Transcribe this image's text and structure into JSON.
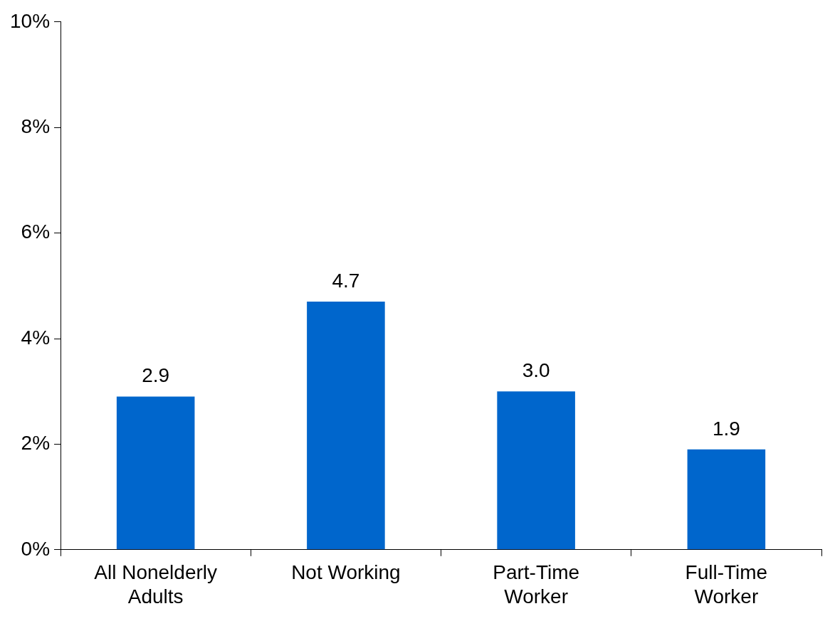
{
  "chart_data": {
    "type": "bar",
    "categories": [
      "All Nonelderly Adults",
      "Not Working",
      "Part-Time Worker",
      "Full-Time Worker"
    ],
    "values": [
      2.9,
      4.7,
      3.0,
      1.9
    ],
    "color": "#0066cc",
    "value_labels": [
      "2.9",
      "4.7",
      "3.0",
      "1.9"
    ],
    "ylim": [
      0,
      10
    ],
    "yticks": [
      {
        "value": 0,
        "label": "0%"
      },
      {
        "value": 2,
        "label": "2%"
      },
      {
        "value": 4,
        "label": "4%"
      },
      {
        "value": 6,
        "label": "6%"
      },
      {
        "value": 8,
        "label": "8%"
      },
      {
        "value": 10,
        "label": "10%"
      }
    ],
    "grid": false,
    "legend": false
  }
}
